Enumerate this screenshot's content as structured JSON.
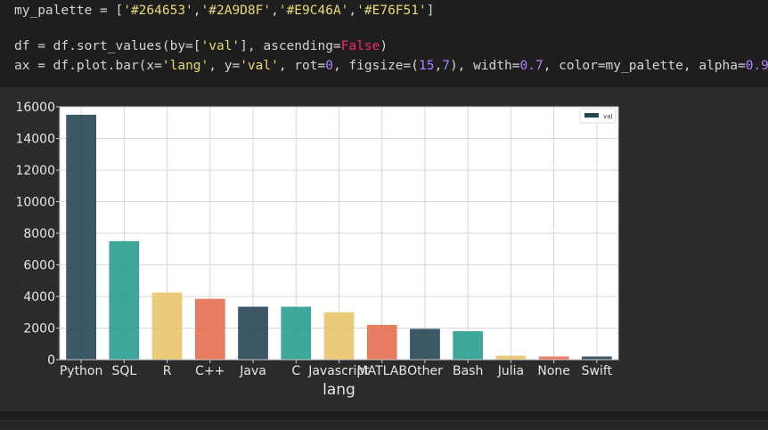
{
  "code": {
    "line1": [
      {
        "t": "my_palette = [",
        "c": ""
      },
      {
        "t": "'#264653'",
        "c": "tk-str"
      },
      {
        "t": ",",
        "c": ""
      },
      {
        "t": "'#2A9D8F'",
        "c": "tk-str"
      },
      {
        "t": ",",
        "c": ""
      },
      {
        "t": "'#E9C46A'",
        "c": "tk-str"
      },
      {
        "t": ",",
        "c": ""
      },
      {
        "t": "'#E76F51'",
        "c": "tk-str"
      },
      {
        "t": "]",
        "c": ""
      }
    ],
    "line2": [
      {
        "t": "df = df.sort_values(by=[",
        "c": ""
      },
      {
        "t": "'val'",
        "c": "tk-str"
      },
      {
        "t": "], ascending=",
        "c": ""
      },
      {
        "t": "False",
        "c": "tk-kw"
      },
      {
        "t": ")",
        "c": ""
      }
    ],
    "line3": [
      {
        "t": "ax = df.plot.bar(x=",
        "c": ""
      },
      {
        "t": "'lang'",
        "c": "tk-str"
      },
      {
        "t": ", y=",
        "c": ""
      },
      {
        "t": "'val'",
        "c": "tk-str"
      },
      {
        "t": ", rot=",
        "c": ""
      },
      {
        "t": "0",
        "c": "tk-num"
      },
      {
        "t": ", figsize=(",
        "c": ""
      },
      {
        "t": "15",
        "c": "tk-num"
      },
      {
        "t": ",",
        "c": ""
      },
      {
        "t": "7",
        "c": "tk-num"
      },
      {
        "t": "), width=",
        "c": ""
      },
      {
        "t": "0.7",
        "c": "tk-num"
      },
      {
        "t": ", color=my_palette, alpha=",
        "c": ""
      },
      {
        "t": "0.9",
        "c": "tk-num"
      },
      {
        "t": ")",
        "c": ""
      }
    ]
  },
  "colors": {
    "palette": [
      "#264653",
      "#2A9D8F",
      "#E9C46A",
      "#E76F51"
    ],
    "alpha": 0.9
  },
  "chart_data": {
    "type": "bar",
    "categories": [
      "Python",
      "SQL",
      "R",
      "C++",
      "Java",
      "C",
      "Javascript",
      "MATLAB",
      "Other",
      "Bash",
      "Julia",
      "None",
      "Swift"
    ],
    "series": [
      {
        "name": "val",
        "values": [
          15500,
          7500,
          4250,
          3850,
          3350,
          3350,
          3000,
          2200,
          1950,
          1800,
          250,
          200,
          200
        ]
      }
    ],
    "xlabel": "lang",
    "ylabel": "",
    "ylim": [
      0,
      16000
    ],
    "yticks": [
      "0",
      "2000",
      "4000",
      "6000",
      "8000",
      "10000",
      "12000",
      "14000",
      "16000"
    ],
    "grid": true,
    "legend": "top-right"
  }
}
